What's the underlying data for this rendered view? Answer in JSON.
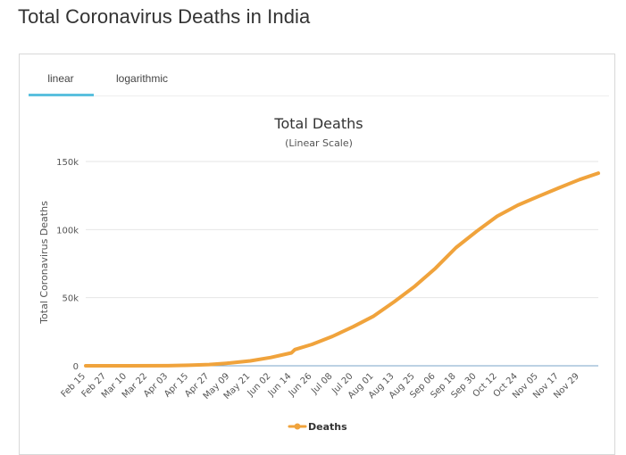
{
  "page": {
    "title": "Total Coronavirus Deaths in India"
  },
  "tabs": [
    {
      "label": "linear",
      "active": true
    },
    {
      "label": "logarithmic",
      "active": false
    }
  ],
  "colors": {
    "series": "#f0a33c",
    "tab_active": "#5bc0de",
    "grid": "#e6e6e6",
    "baseline": "#7aa6c9"
  },
  "chart_data": {
    "type": "line",
    "title": "Total Deaths",
    "subtitle": "(Linear Scale)",
    "ylabel": "Total Coronavirus Deaths",
    "ylim": [
      0,
      150000
    ],
    "y_ticks": [
      0,
      50000,
      100000,
      150000
    ],
    "y_tick_labels": [
      "0",
      "50k",
      "100k",
      "150k"
    ],
    "x_tick_labels": [
      "Feb 15",
      "Feb 27",
      "Mar 10",
      "Mar 22",
      "Apr 03",
      "Apr 15",
      "Apr 27",
      "May 09",
      "May 21",
      "Jun 02",
      "Jun 14",
      "Jun 26",
      "Jul 08",
      "Jul 20",
      "Aug 01",
      "Aug 13",
      "Aug 25",
      "Sep 06",
      "Sep 18",
      "Sep 30",
      "Oct 12",
      "Oct 24",
      "Nov 05",
      "Nov 17",
      "Nov 29"
    ],
    "x_range": [
      "2020-02-15",
      "2020-12-10"
    ],
    "legend": "bottom-center",
    "grid": true,
    "series": [
      {
        "name": "Deaths",
        "points": [
          [
            "2020-02-15",
            0
          ],
          [
            "2020-03-10",
            0
          ],
          [
            "2020-04-03",
            72
          ],
          [
            "2020-04-15",
            420
          ],
          [
            "2020-04-27",
            900
          ],
          [
            "2020-05-09",
            2000
          ],
          [
            "2020-05-21",
            3600
          ],
          [
            "2020-06-02",
            6100
          ],
          [
            "2020-06-14",
            9500
          ],
          [
            "2020-06-16",
            11900
          ],
          [
            "2020-06-26",
            15700
          ],
          [
            "2020-07-08",
            21600
          ],
          [
            "2020-07-20",
            28700
          ],
          [
            "2020-08-01",
            36500
          ],
          [
            "2020-08-13",
            47100
          ],
          [
            "2020-08-25",
            58400
          ],
          [
            "2020-09-06",
            71600
          ],
          [
            "2020-09-18",
            86800
          ],
          [
            "2020-09-30",
            98700
          ],
          [
            "2020-10-12",
            109800
          ],
          [
            "2020-10-24",
            117900
          ],
          [
            "2020-11-05",
            124300
          ],
          [
            "2020-11-17",
            130600
          ],
          [
            "2020-11-29",
            136700
          ],
          [
            "2020-12-10",
            141400
          ]
        ]
      }
    ]
  }
}
